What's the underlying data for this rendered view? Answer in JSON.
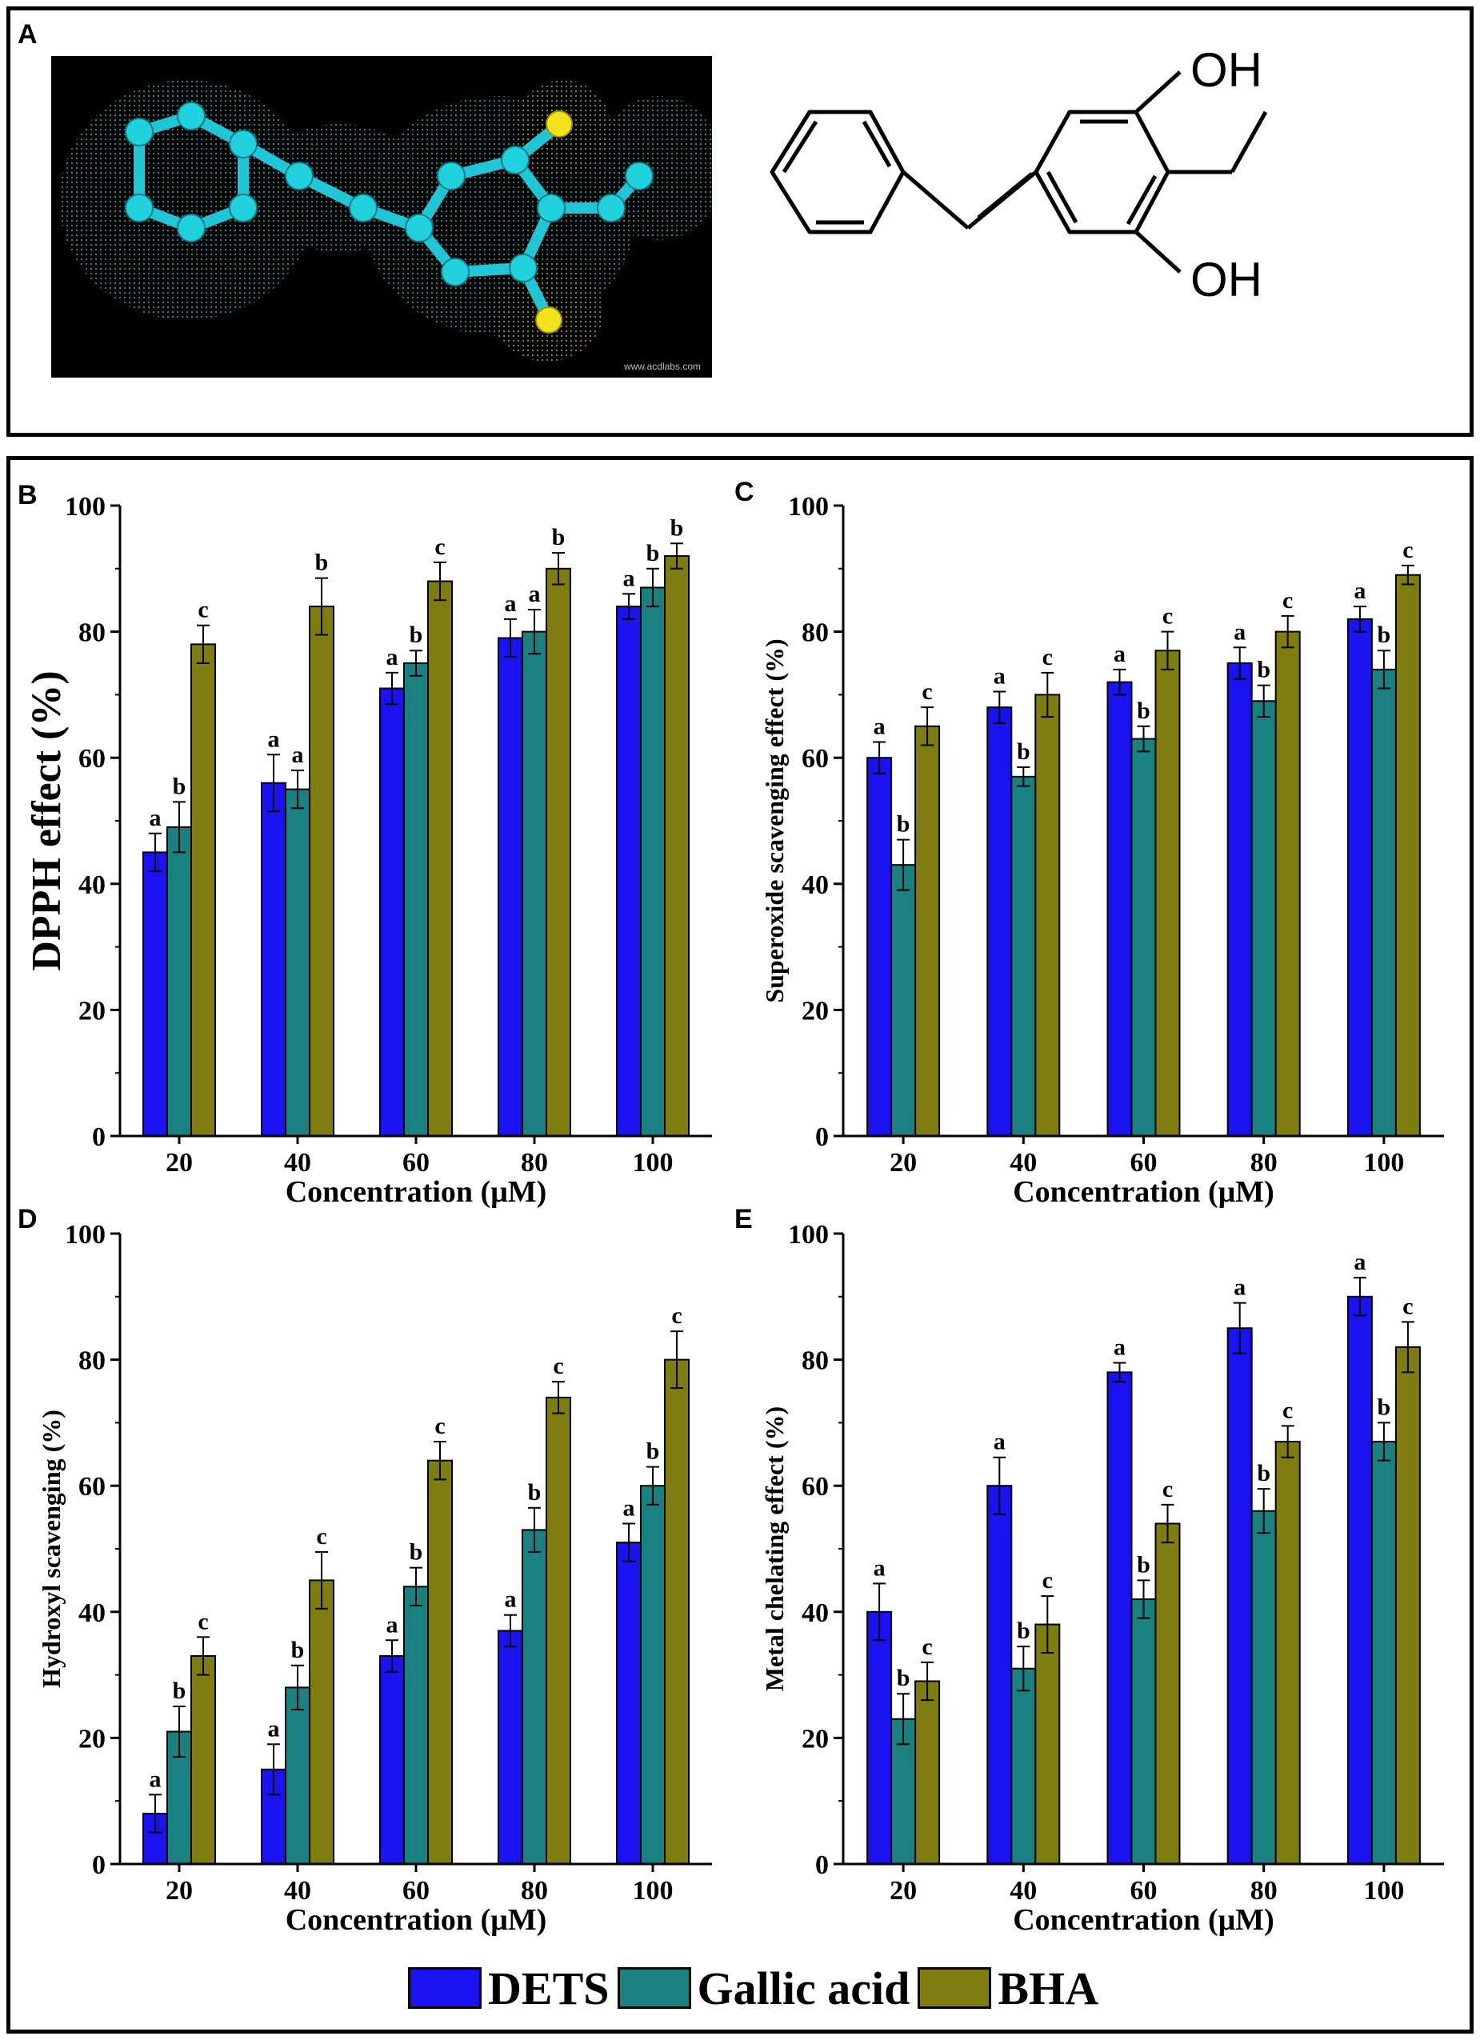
{
  "panels": {
    "a": "A",
    "b": "B",
    "c": "C",
    "d": "D",
    "e": "E"
  },
  "structure": {
    "oh_top": "OH",
    "oh_bottom": "OH",
    "watermark": "www.acdlabs.com"
  },
  "colors": {
    "DETS": "#1a12f0",
    "Gallic acid": "#1a8080",
    "BHA": "#7f7d10"
  },
  "legend": [
    "DETS",
    "Gallic acid",
    "BHA"
  ],
  "chart_data": [
    {
      "id": "B",
      "type": "bar",
      "title": "",
      "xlabel": "Concentration (μM)",
      "ylabel": "DPPH effect (%)",
      "categories": [
        "20",
        "40",
        "60",
        "80",
        "100"
      ],
      "ylim": [
        0,
        100
      ],
      "yticks": [
        0,
        20,
        40,
        60,
        80,
        100
      ],
      "series": [
        {
          "name": "DETS",
          "values": [
            45,
            56,
            71,
            79,
            84
          ],
          "errors": [
            3,
            4.5,
            2.5,
            3,
            2
          ],
          "letters": [
            "a",
            "a",
            "a",
            "a",
            "a"
          ]
        },
        {
          "name": "Gallic acid",
          "values": [
            49,
            55,
            75,
            80,
            87
          ],
          "errors": [
            4,
            3,
            2,
            3.5,
            3
          ],
          "letters": [
            "b",
            "a",
            "b",
            "a",
            "b"
          ]
        },
        {
          "name": "BHA",
          "values": [
            78,
            84,
            88,
            90,
            92
          ],
          "errors": [
            3,
            4.5,
            3,
            2.5,
            2
          ],
          "letters": [
            "c",
            "b",
            "c",
            "b",
            "b"
          ]
        }
      ]
    },
    {
      "id": "C",
      "type": "bar",
      "title": "",
      "xlabel": "Concentration (μM)",
      "ylabel": "Superoxide scavenging effect (%)",
      "categories": [
        "20",
        "40",
        "60",
        "80",
        "100"
      ],
      "ylim": [
        0,
        100
      ],
      "yticks": [
        0,
        20,
        40,
        60,
        80,
        100
      ],
      "series": [
        {
          "name": "DETS",
          "values": [
            60,
            68,
            72,
            75,
            82
          ],
          "errors": [
            2.5,
            2.5,
            2,
            2.5,
            2
          ],
          "letters": [
            "a",
            "a",
            "a",
            "a",
            "a"
          ]
        },
        {
          "name": "Gallic acid",
          "values": [
            43,
            57,
            63,
            69,
            74
          ],
          "errors": [
            4,
            1.5,
            2,
            2.5,
            3
          ],
          "letters": [
            "b",
            "b",
            "b",
            "b",
            "b"
          ]
        },
        {
          "name": "BHA",
          "values": [
            65,
            70,
            77,
            80,
            89
          ],
          "errors": [
            3,
            3.5,
            3,
            2.5,
            1.5
          ],
          "letters": [
            "c",
            "c",
            "c",
            "c",
            "c"
          ]
        }
      ]
    },
    {
      "id": "D",
      "type": "bar",
      "title": "",
      "xlabel": "Concentration (μM)",
      "ylabel": "Hydroxyl scavenging (%)",
      "categories": [
        "20",
        "40",
        "60",
        "80",
        "100"
      ],
      "ylim": [
        0,
        100
      ],
      "yticks": [
        0,
        20,
        40,
        60,
        80,
        100
      ],
      "series": [
        {
          "name": "DETS",
          "values": [
            8,
            15,
            33,
            37,
            51
          ],
          "errors": [
            3,
            4,
            2.5,
            2.5,
            3
          ],
          "letters": [
            "a",
            "a",
            "a",
            "a",
            "a"
          ]
        },
        {
          "name": "Gallic acid",
          "values": [
            21,
            28,
            44,
            53,
            60
          ],
          "errors": [
            4,
            3.5,
            3,
            3.5,
            3
          ],
          "letters": [
            "b",
            "b",
            "b",
            "b",
            "b"
          ]
        },
        {
          "name": "BHA",
          "values": [
            33,
            45,
            64,
            74,
            80
          ],
          "errors": [
            3,
            4.5,
            3,
            2.5,
            4.5
          ],
          "letters": [
            "c",
            "c",
            "c",
            "c",
            "c"
          ]
        }
      ]
    },
    {
      "id": "E",
      "type": "bar",
      "title": "",
      "xlabel": "Concentration (μM)",
      "ylabel": "Metal chelating effect (%)",
      "categories": [
        "20",
        "40",
        "60",
        "80",
        "100"
      ],
      "ylim": [
        0,
        100
      ],
      "yticks": [
        0,
        20,
        40,
        60,
        80,
        100
      ],
      "series": [
        {
          "name": "DETS",
          "values": [
            40,
            60,
            78,
            85,
            90
          ],
          "errors": [
            4.5,
            4.5,
            1.5,
            4,
            3
          ],
          "letters": [
            "a",
            "a",
            "a",
            "a",
            "a"
          ]
        },
        {
          "name": "Gallic acid",
          "values": [
            23,
            31,
            42,
            56,
            67
          ],
          "errors": [
            4,
            3.5,
            3,
            3.5,
            3
          ],
          "letters": [
            "b",
            "b",
            "b",
            "b",
            "b"
          ]
        },
        {
          "name": "BHA",
          "values": [
            29,
            38,
            54,
            67,
            82
          ],
          "errors": [
            3,
            4.5,
            3,
            2.5,
            4
          ],
          "letters": [
            "c",
            "c",
            "c",
            "c",
            "c"
          ]
        }
      ]
    }
  ]
}
